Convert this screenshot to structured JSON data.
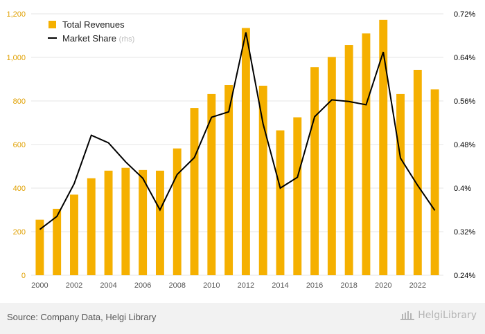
{
  "chart_data": {
    "type": "bar",
    "title": "",
    "xlabel": "",
    "ylabel": "",
    "x": [
      2000,
      2001,
      2002,
      2003,
      2004,
      2005,
      2006,
      2007,
      2008,
      2009,
      2010,
      2011,
      2012,
      2013,
      2014,
      2015,
      2016,
      2017,
      2018,
      2019,
      2020,
      2021,
      2022,
      2023
    ],
    "x_tick_labels": [
      "2000",
      "2002",
      "2004",
      "2006",
      "2008",
      "2010",
      "2012",
      "2014",
      "2016",
      "2018",
      "2020",
      "2022"
    ],
    "series": [
      {
        "name": "Total Revenues",
        "type": "bar",
        "axis": "left",
        "color": "#f5b000",
        "values": [
          255,
          305,
          370,
          445,
          480,
          493,
          483,
          480,
          582,
          768,
          832,
          873,
          1135,
          870,
          665,
          725,
          955,
          1002,
          1057,
          1110,
          1172,
          832,
          943,
          853
        ]
      },
      {
        "name": "Market Share",
        "legend_suffix": "(rhs)",
        "type": "line",
        "axis": "right",
        "color": "#000000",
        "values": [
          0.324,
          0.348,
          0.408,
          0.497,
          0.483,
          0.448,
          0.418,
          0.36,
          0.425,
          0.456,
          0.53,
          0.54,
          0.686,
          0.518,
          0.4,
          0.42,
          0.531,
          0.562,
          0.559,
          0.553,
          0.65,
          0.455,
          0.405,
          0.359
        ]
      }
    ],
    "y_left": {
      "min": 0,
      "max": 1200,
      "ticks": [
        0,
        200,
        400,
        600,
        800,
        1000,
        1200
      ],
      "tick_labels": [
        "0",
        "200",
        "400",
        "600",
        "800",
        "1,000",
        "1,200"
      ]
    },
    "y_right": {
      "min": 0.24,
      "max": 0.72,
      "ticks": [
        0.24,
        0.32,
        0.4,
        0.48,
        0.56,
        0.64,
        0.72
      ],
      "tick_labels": [
        "0.24%",
        "0.32%",
        "0.4%",
        "0.48%",
        "0.56%",
        "0.64%",
        "0.72%"
      ]
    },
    "grid": true,
    "legend_position": "top-left"
  },
  "colors": {
    "axis_left_text": "#e0a000",
    "axis_right_text": "#000000",
    "grid": "#e6e6e6",
    "legend_suffix": "#bbbbbb"
  },
  "footer": {
    "source": "Source: Company Data, Helgi Library",
    "logo_text": "HelgiLibrary"
  }
}
